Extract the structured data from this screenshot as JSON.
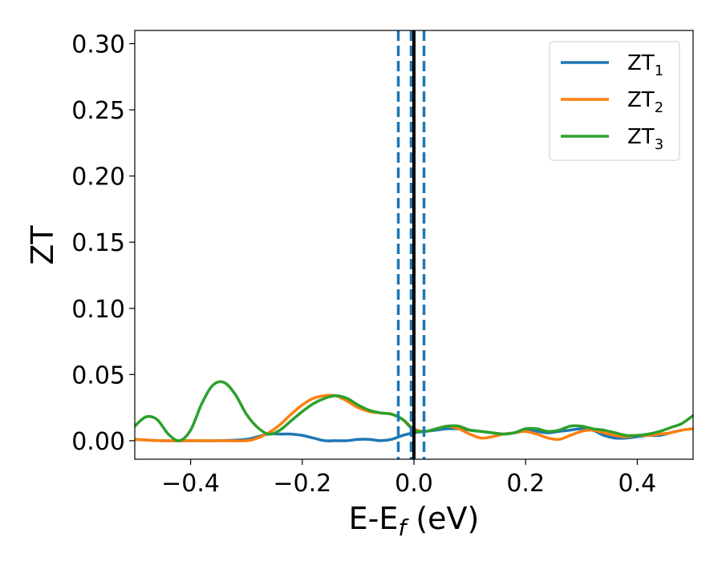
{
  "chart_data": {
    "type": "line",
    "title": "",
    "xlabel": "E-E",
    "xlabel_sub": "f",
    "xlabel_unit": " (eV)",
    "ylabel": "ZT",
    "xlim": [
      -0.5,
      0.5
    ],
    "ylim": [
      -0.014,
      0.31
    ],
    "x_ticks": [
      -0.4,
      -0.2,
      0.0,
      0.2,
      0.4
    ],
    "x_tick_labels": [
      "−0.4",
      "−0.2",
      "0.0",
      "0.2",
      "0.4"
    ],
    "y_ticks": [
      0.0,
      0.05,
      0.1,
      0.15,
      0.2,
      0.25,
      0.3
    ],
    "y_tick_labels": [
      "0.00",
      "0.05",
      "0.10",
      "0.15",
      "0.20",
      "0.25",
      "0.30"
    ],
    "grid": false,
    "legend_position": "top-right",
    "vertical_lines": [
      {
        "x": -0.028,
        "style": "dashed",
        "color": "#1f77b4"
      },
      {
        "x": -0.005,
        "style": "dashed",
        "color": "#1f77b4"
      },
      {
        "x": 0.018,
        "style": "dashed",
        "color": "#1f77b4"
      },
      {
        "x": 0.0,
        "style": "solid",
        "color": "#000000"
      }
    ],
    "series": [
      {
        "name": "ZT",
        "name_sub": "1",
        "color": "#1f77b4",
        "x": [
          -0.5,
          -0.45,
          -0.4,
          -0.35,
          -0.3,
          -0.28,
          -0.26,
          -0.24,
          -0.22,
          -0.2,
          -0.18,
          -0.16,
          -0.14,
          -0.12,
          -0.1,
          -0.08,
          -0.06,
          -0.04,
          -0.02,
          0.0,
          0.02,
          0.04,
          0.06,
          0.08,
          0.1,
          0.12,
          0.14,
          0.16,
          0.18,
          0.2,
          0.22,
          0.24,
          0.26,
          0.28,
          0.3,
          0.32,
          0.34,
          0.36,
          0.38,
          0.4,
          0.42,
          0.44,
          0.46,
          0.48,
          0.5
        ],
        "y": [
          0.001,
          0.0,
          0.0,
          0.0,
          0.001,
          0.003,
          0.005,
          0.005,
          0.005,
          0.004,
          0.002,
          0.0,
          0.0,
          0.0,
          0.001,
          0.001,
          0.0,
          0.001,
          0.004,
          0.006,
          0.007,
          0.008,
          0.009,
          0.009,
          0.008,
          0.007,
          0.006,
          0.005,
          0.006,
          0.008,
          0.007,
          0.006,
          0.007,
          0.008,
          0.009,
          0.008,
          0.004,
          0.002,
          0.002,
          0.003,
          0.004,
          0.004,
          0.006,
          0.008,
          0.009
        ]
      },
      {
        "name": "ZT",
        "name_sub": "2",
        "color": "#ff7f0e",
        "x": [
          -0.5,
          -0.45,
          -0.4,
          -0.35,
          -0.3,
          -0.28,
          -0.26,
          -0.24,
          -0.22,
          -0.2,
          -0.18,
          -0.16,
          -0.14,
          -0.12,
          -0.1,
          -0.08,
          -0.06,
          -0.04,
          -0.02,
          0.0,
          0.02,
          0.04,
          0.06,
          0.08,
          0.1,
          0.12,
          0.14,
          0.16,
          0.18,
          0.2,
          0.22,
          0.24,
          0.26,
          0.28,
          0.3,
          0.32,
          0.34,
          0.36,
          0.38,
          0.4,
          0.42,
          0.44,
          0.46,
          0.48,
          0.5
        ],
        "y": [
          0.001,
          0.0,
          0.0,
          0.0,
          0.0,
          0.002,
          0.006,
          0.012,
          0.02,
          0.027,
          0.032,
          0.034,
          0.034,
          0.03,
          0.025,
          0.022,
          0.021,
          0.02,
          0.016,
          0.009,
          0.007,
          0.009,
          0.011,
          0.009,
          0.005,
          0.002,
          0.003,
          0.005,
          0.006,
          0.007,
          0.005,
          0.002,
          0.001,
          0.004,
          0.007,
          0.008,
          0.006,
          0.004,
          0.003,
          0.004,
          0.004,
          0.005,
          0.006,
          0.008,
          0.009
        ]
      },
      {
        "name": "ZT",
        "name_sub": "3",
        "color": "#2ca02c",
        "x": [
          -0.5,
          -0.48,
          -0.46,
          -0.44,
          -0.42,
          -0.4,
          -0.38,
          -0.36,
          -0.34,
          -0.32,
          -0.3,
          -0.28,
          -0.26,
          -0.24,
          -0.22,
          -0.2,
          -0.18,
          -0.16,
          -0.14,
          -0.12,
          -0.1,
          -0.08,
          -0.06,
          -0.04,
          -0.02,
          0.0,
          0.02,
          0.04,
          0.06,
          0.08,
          0.1,
          0.12,
          0.14,
          0.16,
          0.18,
          0.2,
          0.22,
          0.24,
          0.26,
          0.28,
          0.3,
          0.32,
          0.34,
          0.36,
          0.38,
          0.4,
          0.42,
          0.44,
          0.46,
          0.48,
          0.5
        ],
        "y": [
          0.011,
          0.018,
          0.016,
          0.005,
          0.0,
          0.008,
          0.028,
          0.042,
          0.044,
          0.035,
          0.02,
          0.01,
          0.005,
          0.008,
          0.015,
          0.022,
          0.028,
          0.032,
          0.034,
          0.032,
          0.027,
          0.023,
          0.021,
          0.02,
          0.016,
          0.008,
          0.007,
          0.009,
          0.011,
          0.011,
          0.008,
          0.007,
          0.006,
          0.005,
          0.006,
          0.009,
          0.009,
          0.007,
          0.008,
          0.011,
          0.011,
          0.009,
          0.008,
          0.006,
          0.004,
          0.004,
          0.005,
          0.007,
          0.01,
          0.013,
          0.019
        ]
      }
    ]
  }
}
